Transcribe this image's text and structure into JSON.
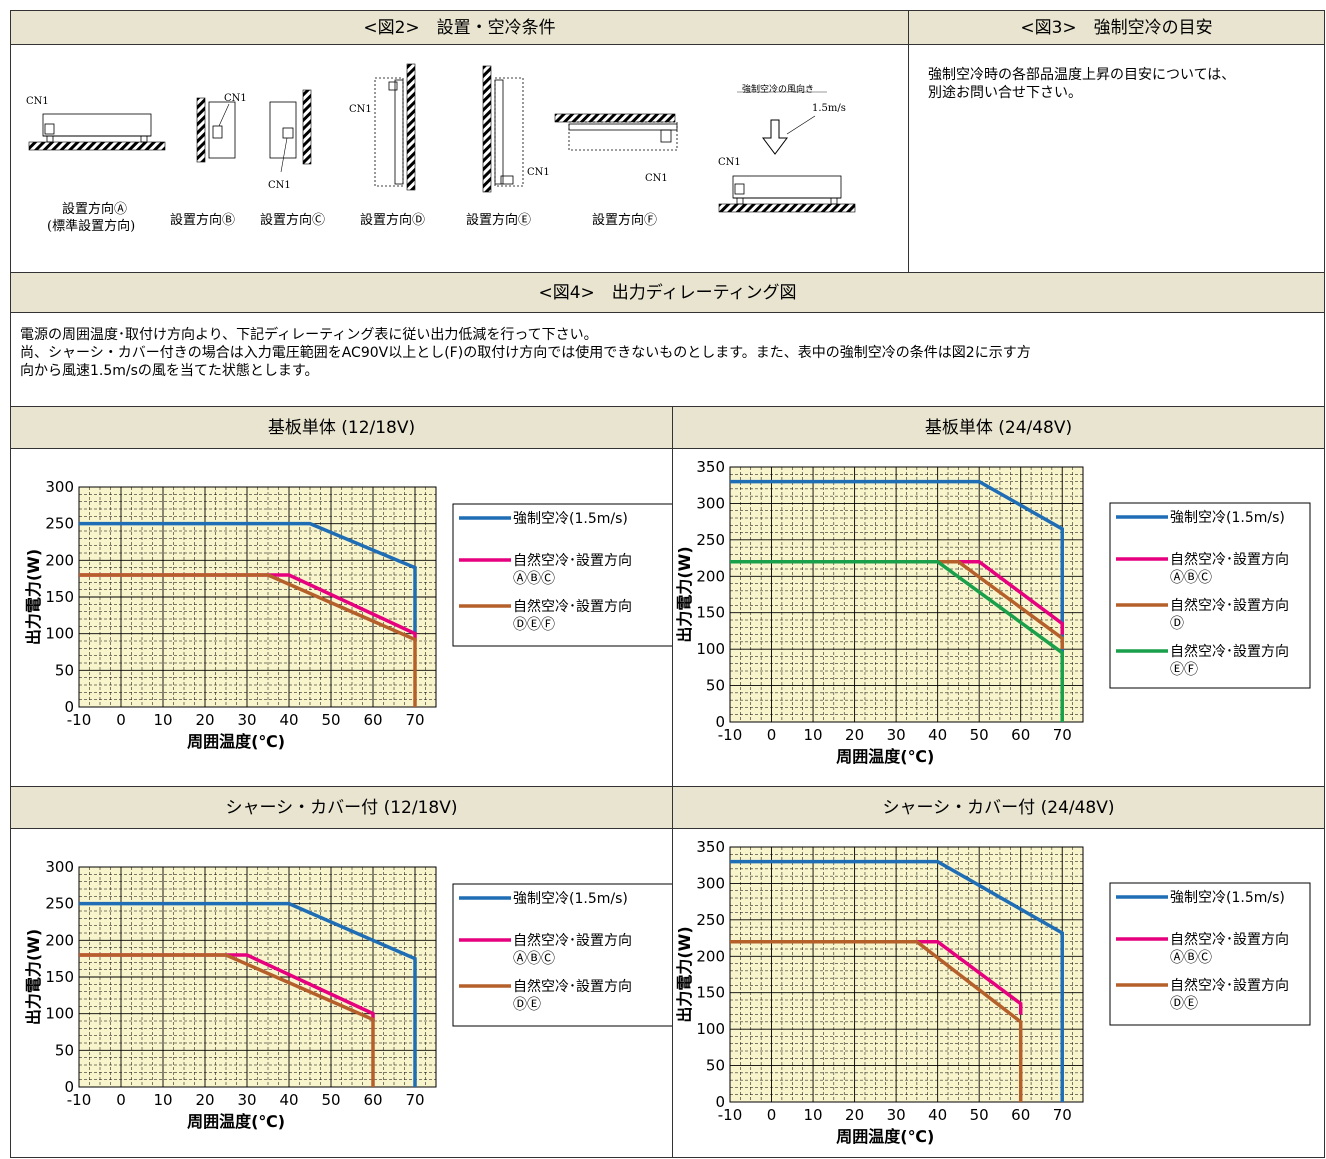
{
  "fig2": {
    "title": "<図2>　設置・空冷条件",
    "cn_label": "CN1",
    "captions": [
      "設置方向Ⓐ",
      "(標準設置方向)",
      "設置方向Ⓑ",
      "設置方向Ⓒ",
      "設置方向Ⓓ",
      "設置方向Ⓔ",
      "設置方向Ⓕ"
    ],
    "wind_title": "強制空冷の風向き",
    "wind_speed": "1.5m/s"
  },
  "fig3": {
    "title": "<図3>　強制空冷の目安",
    "text_lines": [
      "強制空冷時の各部品温度上昇の目安については、",
      "別途お問い合せ下さい。"
    ]
  },
  "fig4": {
    "title": "<図4>　出力ディレーティング図",
    "text_lines": [
      "電源の周囲温度･取付け方向より、下記ディレーティング表に従い出力低減を行って下さい。",
      "尚、シャーシ・カバー付きの場合は入力電圧範囲をAC90V以上とし(F)の取付け方向では使用できないものとします。また、表中の強制空冷の条件は図2に示す方",
      "向から風速1.5m/sの風を当てた状態とします。"
    ]
  },
  "colors": {
    "forced": "#1f6db5",
    "abc": "#e6007e",
    "def": "#b5602a",
    "ef": "#1aa04a",
    "plot_bg": "#f8f4cc",
    "header_bg": "#e8e4cf"
  },
  "chart_data": [
    {
      "type": "line",
      "title": "基板単体 (12/18V)",
      "xlabel": "周囲温度(℃)",
      "ylabel": "出力電力(W)",
      "xlim": [
        -10,
        75
      ],
      "ylim": [
        0,
        300
      ],
      "xticks": [
        -10,
        0,
        10,
        20,
        30,
        40,
        50,
        60,
        70
      ],
      "yticks": [
        0,
        50,
        100,
        150,
        200,
        250,
        300
      ],
      "grid": true,
      "legend": "right",
      "series": [
        {
          "name": "強制空冷(1.5m/s)",
          "color_key": "forced",
          "x": [
            -10,
            45,
            70,
            70
          ],
          "y": [
            250,
            250,
            190,
            100
          ]
        },
        {
          "name": "自然空冷･設置方向",
          "name2": "ⒶⒷⒸ",
          "color_key": "abc",
          "x": [
            -10,
            40,
            70,
            70
          ],
          "y": [
            180,
            180,
            100,
            90
          ]
        },
        {
          "name": "自然空冷･設置方向",
          "name2": "ⒹⒺⒻ",
          "color_key": "def",
          "x": [
            -10,
            35,
            70,
            70
          ],
          "y": [
            180,
            180,
            92,
            0
          ]
        }
      ]
    },
    {
      "type": "line",
      "title": "基板単体 (24/48V)",
      "xlabel": "周囲温度(℃)",
      "ylabel": "出力電力(W)",
      "xlim": [
        -10,
        75
      ],
      "ylim": [
        0,
        350
      ],
      "xticks": [
        -10,
        0,
        10,
        20,
        30,
        40,
        50,
        60,
        70
      ],
      "yticks": [
        0,
        50,
        100,
        150,
        200,
        250,
        300,
        350
      ],
      "grid": true,
      "legend": "right",
      "series": [
        {
          "name": "強制空冷(1.5m/s)",
          "color_key": "forced",
          "x": [
            -10,
            50,
            70,
            70
          ],
          "y": [
            330,
            330,
            265,
            0
          ]
        },
        {
          "name": "自然空冷･設置方向",
          "name2": "ⒶⒷⒸ",
          "color_key": "abc",
          "x": [
            -10,
            50,
            70,
            70
          ],
          "y": [
            220,
            220,
            135,
            120
          ]
        },
        {
          "name": "自然空冷･設置方向",
          "name2": "Ⓓ",
          "color_key": "def",
          "x": [
            -10,
            45,
            70,
            70
          ],
          "y": [
            220,
            220,
            115,
            100
          ]
        },
        {
          "name": "自然空冷･設置方向",
          "name2": "ⒺⒻ",
          "color_key": "ef",
          "x": [
            -10,
            40,
            70,
            70
          ],
          "y": [
            220,
            220,
            95,
            0
          ]
        }
      ]
    },
    {
      "type": "line",
      "title": "シャーシ・カバー付 (12/18V)",
      "xlabel": "周囲温度(℃)",
      "ylabel": "出力電力(W)",
      "xlim": [
        -10,
        75
      ],
      "ylim": [
        0,
        300
      ],
      "xticks": [
        -10,
        0,
        10,
        20,
        30,
        40,
        50,
        60,
        70
      ],
      "yticks": [
        0,
        50,
        100,
        150,
        200,
        250,
        300
      ],
      "grid": true,
      "legend": "right",
      "series": [
        {
          "name": "強制空冷(1.5m/s)",
          "color_key": "forced",
          "x": [
            -10,
            40,
            70,
            70
          ],
          "y": [
            250,
            250,
            175,
            0
          ]
        },
        {
          "name": "自然空冷･設置方向",
          "name2": "ⒶⒷⒸ",
          "color_key": "abc",
          "x": [
            -10,
            30,
            60,
            60
          ],
          "y": [
            180,
            180,
            100,
            90
          ]
        },
        {
          "name": "自然空冷･設置方向",
          "name2": "ⒹⒺ",
          "color_key": "def",
          "x": [
            -10,
            25,
            60,
            60
          ],
          "y": [
            180,
            180,
            92,
            0
          ]
        }
      ]
    },
    {
      "type": "line",
      "title": "シャーシ・カバー付 (24/48V)",
      "xlabel": "周囲温度(℃)",
      "ylabel": "出力電力(W)",
      "xlim": [
        -10,
        75
      ],
      "ylim": [
        0,
        350
      ],
      "xticks": [
        -10,
        0,
        10,
        20,
        30,
        40,
        50,
        60,
        70
      ],
      "yticks": [
        0,
        50,
        100,
        150,
        200,
        250,
        300,
        350
      ],
      "grid": true,
      "legend": "right",
      "series": [
        {
          "name": "強制空冷(1.5m/s)",
          "color_key": "forced",
          "x": [
            -10,
            40,
            70,
            70
          ],
          "y": [
            330,
            330,
            232,
            0
          ]
        },
        {
          "name": "自然空冷･設置方向",
          "name2": "ⒶⒷⒸ",
          "color_key": "abc",
          "x": [
            -10,
            40,
            60,
            60
          ],
          "y": [
            220,
            220,
            135,
            120
          ]
        },
        {
          "name": "自然空冷･設置方向",
          "name2": "ⒹⒺ",
          "color_key": "def",
          "x": [
            -10,
            35,
            60,
            60
          ],
          "y": [
            220,
            220,
            110,
            0
          ]
        }
      ]
    }
  ]
}
